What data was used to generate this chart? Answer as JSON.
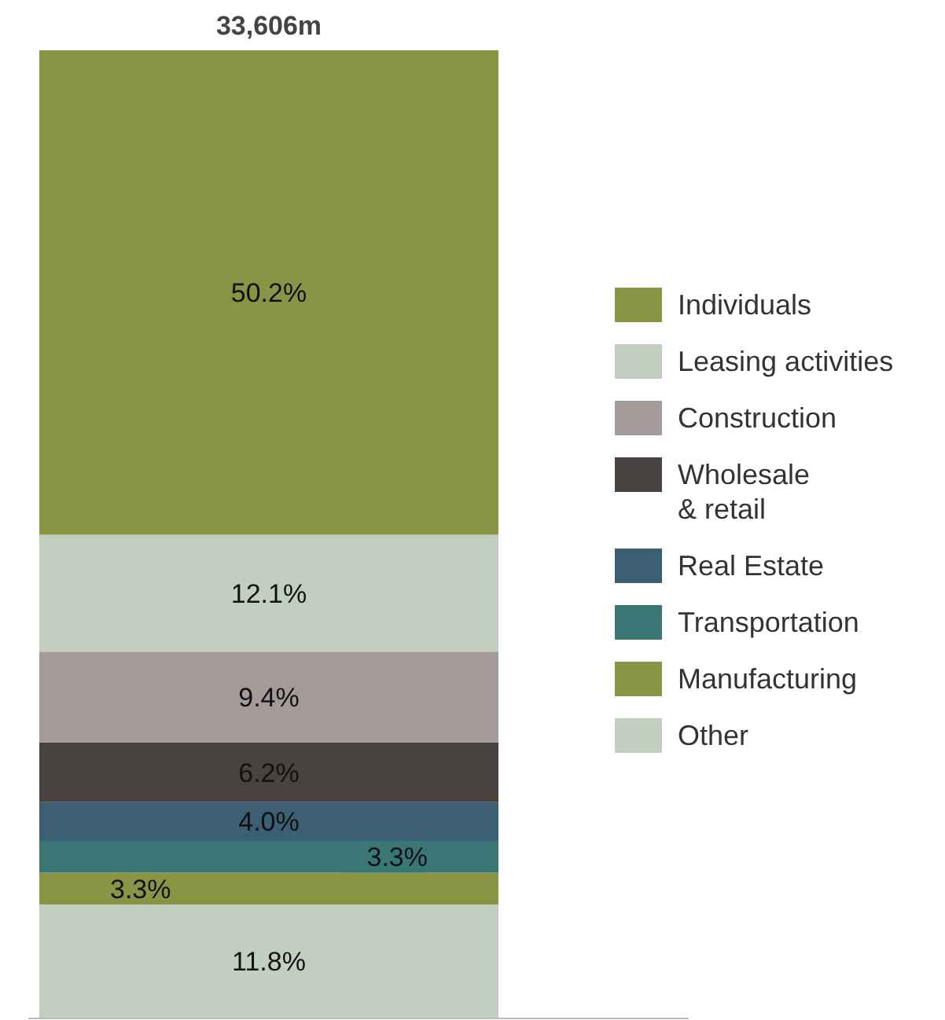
{
  "chart_data": {
    "type": "bar",
    "stacked": true,
    "categories": [
      null
    ],
    "annotations": [
      "33,606m"
    ],
    "legend": "right",
    "series": [
      {
        "name": "Other",
        "color": "#c2cfbe",
        "values": [
          11.8
        ],
        "value_labels": [
          "11.8%"
        ]
      },
      {
        "name": "Manufacturing",
        "color": "#8a9445",
        "values": [
          3.3
        ],
        "value_labels": [
          "3.3%"
        ]
      },
      {
        "name": "Transportation",
        "color": "#3a7676",
        "values": [
          3.3
        ],
        "value_labels": [
          "3.3%"
        ]
      },
      {
        "name": "Real Estate",
        "color": "#3d5f73",
        "values": [
          4.0
        ],
        "value_labels": [
          "4.0%"
        ]
      },
      {
        "name": "Wholesale\n& retail",
        "color": "#484340",
        "values": [
          6.2
        ],
        "value_labels": [
          "6.2%"
        ]
      },
      {
        "name": "Construction",
        "color": "#a39a99",
        "values": [
          9.4
        ],
        "value_labels": [
          "9.4%"
        ]
      },
      {
        "name": "Leasing activities",
        "color": "#c2cfbe",
        "values": [
          12.1
        ],
        "value_labels": [
          "12.1%"
        ]
      },
      {
        "name": "Individuals",
        "color": "#8a9445",
        "values": [
          50.2
        ],
        "value_labels": [
          "50.2%"
        ]
      }
    ]
  }
}
